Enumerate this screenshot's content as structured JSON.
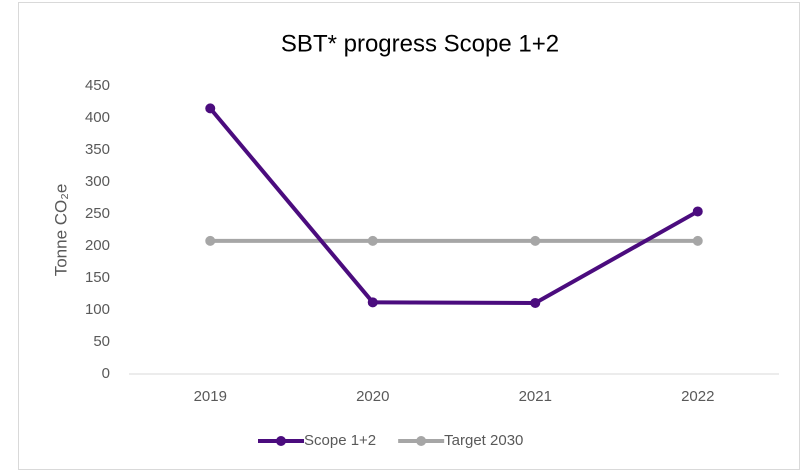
{
  "chart_data": {
    "type": "line",
    "title": "SBT* progress Scope 1+2",
    "y_axis_label": "Tonne CO₂e",
    "categories": [
      "2019",
      "2020",
      "2021",
      "2022"
    ],
    "series": [
      {
        "name": "Scope 1+2",
        "color": "#4b0c7e",
        "values": [
          415,
          112,
          111,
          254
        ]
      },
      {
        "name": "Target 2030",
        "color": "#a6a6a6",
        "values": [
          208,
          208,
          208,
          208
        ]
      }
    ],
    "ylim": [
      0,
      450
    ],
    "yticks": [
      0,
      50,
      100,
      150,
      200,
      250,
      300,
      350,
      400,
      450
    ],
    "grid": false,
    "legend": "bottom"
  }
}
